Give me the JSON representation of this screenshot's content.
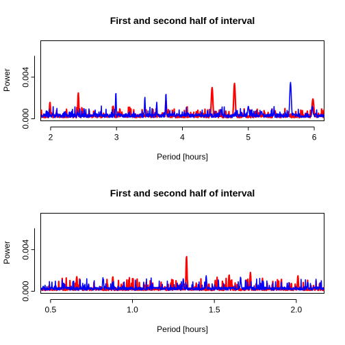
{
  "chart_data": [
    {
      "type": "line",
      "title": "First and second half of interval",
      "xlabel": "Period [hours]",
      "ylabel": "Power",
      "xlim": [
        1.85,
        6.15
      ],
      "ylim": [
        -0.0002,
        0.0075
      ],
      "xticks": [
        2,
        3,
        4,
        5,
        6
      ],
      "xtick_labels": [
        "2",
        "3",
        "4",
        "5",
        "6"
      ],
      "yticks": [
        0.0,
        0.004
      ],
      "ytick_labels": [
        "0.000",
        "0.004"
      ],
      "grid": false,
      "series": [
        {
          "color": "#ff0000",
          "baseline": 0.00025,
          "noise": 0.0008,
          "seed": 11,
          "peaks": [
            {
              "x": 1.99,
              "y": 0.0016,
              "w": 0.008
            },
            {
              "x": 2.42,
              "y": 0.0025,
              "w": 0.008
            },
            {
              "x": 2.95,
              "y": 0.0012,
              "w": 0.008
            },
            {
              "x": 3.2,
              "y": 0.0011,
              "w": 0.008
            },
            {
              "x": 3.75,
              "y": 0.0018,
              "w": 0.008
            },
            {
              "x": 4.45,
              "y": 0.003,
              "w": 0.012
            },
            {
              "x": 4.79,
              "y": 0.0034,
              "w": 0.012
            },
            {
              "x": 5.4,
              "y": 0.0008,
              "w": 0.015
            },
            {
              "x": 5.98,
              "y": 0.0019,
              "w": 0.014
            }
          ]
        },
        {
          "color": "#0000ff",
          "baseline": 0.0003,
          "noise": 0.0008,
          "seed": 23,
          "peaks": [
            {
              "x": 2.99,
              "y": 0.0026,
              "w": 0.006
            },
            {
              "x": 3.43,
              "y": 0.0021,
              "w": 0.006
            },
            {
              "x": 3.61,
              "y": 0.0016,
              "w": 0.006
            },
            {
              "x": 3.75,
              "y": 0.0025,
              "w": 0.006
            },
            {
              "x": 4.58,
              "y": 0.0009,
              "w": 0.012
            },
            {
              "x": 5.0,
              "y": 0.0012,
              "w": 0.012
            },
            {
              "x": 5.2,
              "y": 0.0007,
              "w": 0.012
            },
            {
              "x": 5.64,
              "y": 0.0035,
              "w": 0.012
            },
            {
              "x": 5.97,
              "y": 0.0012,
              "w": 0.012
            }
          ]
        }
      ]
    },
    {
      "type": "line",
      "title": "First and second half of interval",
      "xlabel": "Period [hours]",
      "ylabel": "Power",
      "xlim": [
        0.44,
        2.17
      ],
      "ylim": [
        -0.0002,
        0.0075
      ],
      "xticks": [
        0.5,
        1.0,
        1.5,
        2.0
      ],
      "xtick_labels": [
        "0.5",
        "1.0",
        "1.5",
        "2.0"
      ],
      "yticks": [
        0.0,
        0.004
      ],
      "ytick_labels": [
        "0.000",
        "0.004"
      ],
      "grid": false,
      "series": [
        {
          "color": "#ff0000",
          "baseline": 0.0002,
          "noise": 0.0011,
          "seed": 37,
          "peaks": [
            {
              "x": 0.66,
              "y": 0.0014,
              "w": 0.003
            },
            {
              "x": 0.88,
              "y": 0.0014,
              "w": 0.003
            },
            {
              "x": 1.33,
              "y": 0.0034,
              "w": 0.003
            },
            {
              "x": 1.59,
              "y": 0.0016,
              "w": 0.003
            },
            {
              "x": 1.72,
              "y": 0.0018,
              "w": 0.003
            },
            {
              "x": 2.01,
              "y": 0.0015,
              "w": 0.003
            }
          ]
        },
        {
          "color": "#0000ff",
          "baseline": 0.00025,
          "noise": 0.0009,
          "seed": 53,
          "peaks": [
            {
              "x": 0.82,
              "y": 0.0013,
              "w": 0.003
            },
            {
              "x": 1.31,
              "y": 0.0012,
              "w": 0.003
            },
            {
              "x": 1.45,
              "y": 0.0015,
              "w": 0.003
            },
            {
              "x": 1.66,
              "y": 0.0014,
              "w": 0.003
            },
            {
              "x": 2.07,
              "y": 0.0009,
              "w": 0.003
            }
          ]
        }
      ]
    }
  ]
}
